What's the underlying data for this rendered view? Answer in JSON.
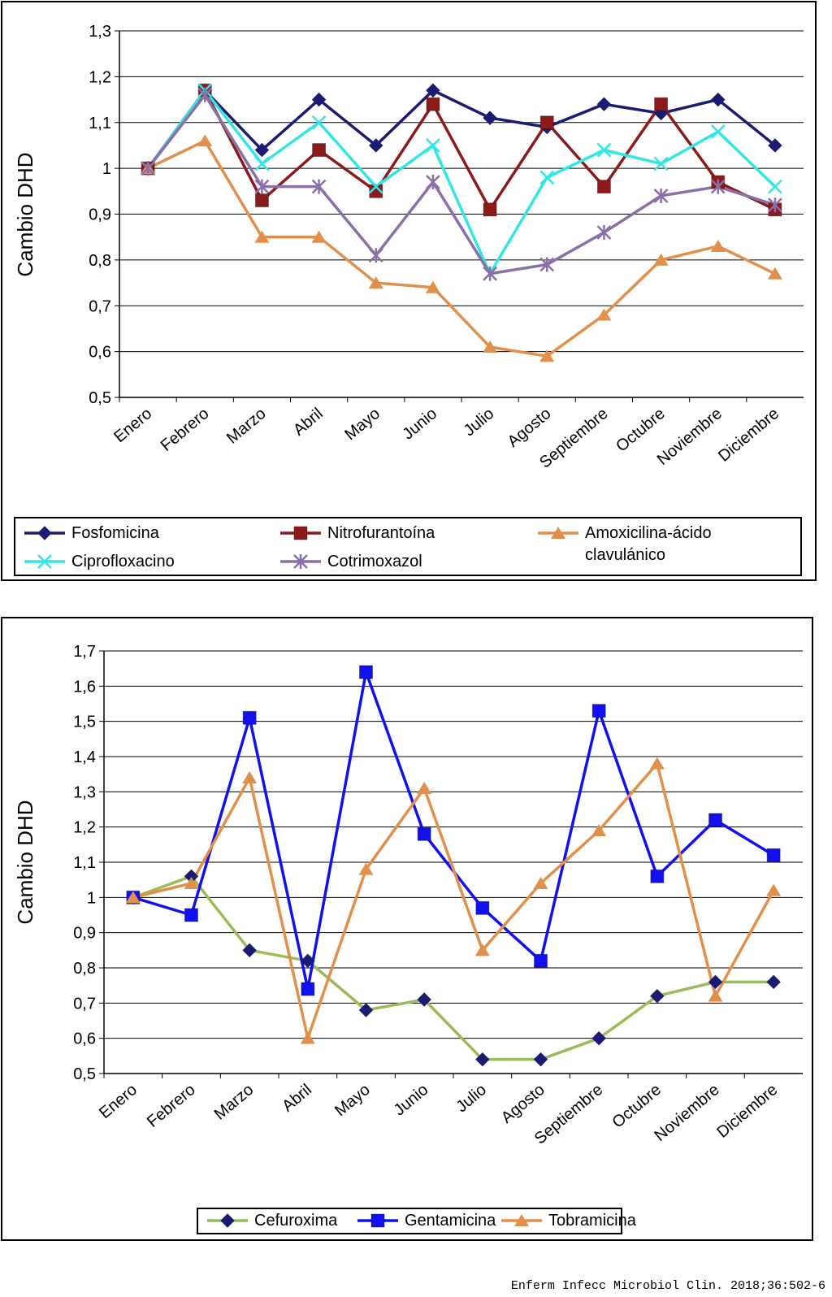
{
  "chart_data": [
    {
      "type": "line",
      "y_label": "Cambio DHD",
      "categories": [
        "Enero",
        "Febrero",
        "Marzo",
        "Abril",
        "Mayo",
        "Junio",
        "Julio",
        "Agosto",
        "Septiembre",
        "Octubre",
        "Noviembre",
        "Diciembre"
      ],
      "ylim": [
        0.5,
        1.3
      ],
      "yticks": [
        {
          "value": 0.5,
          "label": "0,5"
        },
        {
          "value": 0.6,
          "label": "0,6"
        },
        {
          "value": 0.7,
          "label": "0,7"
        },
        {
          "value": 0.8,
          "label": "0,8"
        },
        {
          "value": 0.9,
          "label": "0,9"
        },
        1,
        {
          "value": 1.1,
          "label": "1,1"
        },
        {
          "value": 1.2,
          "label": "1,2"
        },
        {
          "value": 1.3,
          "label": "1,3"
        }
      ],
      "grid": true,
      "series": [
        {
          "name": "Fosfomicina",
          "color": "#1b1b72",
          "marker": "diamond",
          "values": [
            1.0,
            1.17,
            1.04,
            1.15,
            1.05,
            1.17,
            1.11,
            1.09,
            1.14,
            1.12,
            1.15,
            1.05
          ]
        },
        {
          "name": "Nitrofurantoína",
          "color": "#8b1a1a",
          "marker": "square",
          "values": [
            1.0,
            1.17,
            0.93,
            1.04,
            0.95,
            1.14,
            0.91,
            1.1,
            0.96,
            1.14,
            0.97,
            0.91
          ]
        },
        {
          "name": "Amoxicilina-ácido clavulánico",
          "color": "#e0904a",
          "marker": "triangle",
          "values": [
            1.0,
            1.06,
            0.85,
            0.85,
            0.75,
            0.74,
            0.61,
            0.59,
            0.68,
            0.8,
            0.83,
            0.77
          ]
        },
        {
          "name": "Ciprofloxacino",
          "color": "#33e6e6",
          "marker": "x",
          "values": [
            1.0,
            1.17,
            1.01,
            1.1,
            0.96,
            1.05,
            0.77,
            0.98,
            1.04,
            1.01,
            1.08,
            0.96
          ]
        },
        {
          "name": "Cotrimoxazol",
          "color": "#8a6fa8",
          "marker": "asterisk",
          "values": [
            1.0,
            1.16,
            0.96,
            0.96,
            0.81,
            0.97,
            0.77,
            0.79,
            0.86,
            0.94,
            0.96,
            0.92
          ]
        }
      ]
    },
    {
      "type": "line",
      "y_label": "Cambio DHD",
      "categories": [
        "Enero",
        "Febrero",
        "Marzo",
        "Abril",
        "Mayo",
        "Junio",
        "Julio",
        "Agosto",
        "Septiembre",
        "Octubre",
        "Noviembre",
        "Diciembre"
      ],
      "ylim": [
        0.5,
        1.7
      ],
      "yticks": [
        {
          "value": 0.5,
          "label": "0,5"
        },
        {
          "value": 0.6,
          "label": "0,6"
        },
        {
          "value": 0.7,
          "label": "0,7"
        },
        {
          "value": 0.8,
          "label": "0,8"
        },
        {
          "value": 0.9,
          "label": "0,9"
        },
        1,
        {
          "value": 1.1,
          "label": "1,1"
        },
        {
          "value": 1.2,
          "label": "1,2"
        },
        {
          "value": 1.3,
          "label": "1,3"
        },
        {
          "value": 1.4,
          "label": "1,4"
        },
        {
          "value": 1.5,
          "label": "1,5"
        },
        {
          "value": 1.6,
          "label": "1,6"
        },
        {
          "value": 1.7,
          "label": "1,7"
        }
      ],
      "grid": true,
      "series": [
        {
          "name": "Cefuroxima",
          "color": "#9bbb59",
          "marker": "diamond",
          "marker_color": "#1b1b72",
          "values": [
            1.0,
            1.06,
            0.85,
            0.82,
            0.68,
            0.71,
            0.54,
            0.54,
            0.6,
            0.72,
            0.76,
            0.76
          ]
        },
        {
          "name": "Gentamicina",
          "color": "#1010f0",
          "marker": "square",
          "values": [
            1.0,
            0.95,
            1.51,
            0.74,
            1.64,
            1.18,
            0.97,
            0.82,
            1.53,
            1.06,
            1.22,
            1.12
          ]
        },
        {
          "name": "Tobramicina",
          "color": "#e0904a",
          "marker": "triangle",
          "values": [
            1.0,
            1.04,
            1.34,
            0.6,
            1.08,
            1.31,
            0.85,
            1.04,
            1.19,
            1.38,
            0.72,
            1.02
          ]
        }
      ]
    }
  ],
  "footer": "Enferm Infecc Microbiol Clin. 2018;36:502-6"
}
